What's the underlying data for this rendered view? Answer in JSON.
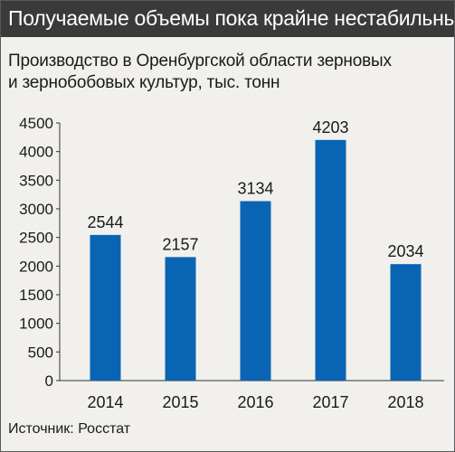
{
  "header": {
    "title": "Получаемые объемы пока крайне нестабильны"
  },
  "subtitle": {
    "line1": "Производство в Оренбургской области зерновых",
    "line2": "и зернобобовых культур, тыс. тонн"
  },
  "footer": {
    "source": "Источник: Росстат"
  },
  "colors": {
    "bar": "#0a64b4",
    "header_bg": "#3a3a3a",
    "background": "#f1f0ec"
  },
  "chart_data": {
    "type": "bar",
    "categories": [
      "2014",
      "2015",
      "2016",
      "2017",
      "2018"
    ],
    "values": [
      2544,
      2157,
      3134,
      4203,
      2034
    ],
    "data_labels": [
      "2544",
      "2157",
      "3134",
      "4203",
      "2034"
    ],
    "title": "",
    "xlabel": "",
    "ylabel": "",
    "ylim": [
      0,
      4500
    ],
    "yticks": [
      0,
      500,
      1000,
      1500,
      2000,
      2500,
      3000,
      3500,
      4000,
      4500
    ],
    "grid": false,
    "legend": "none"
  }
}
